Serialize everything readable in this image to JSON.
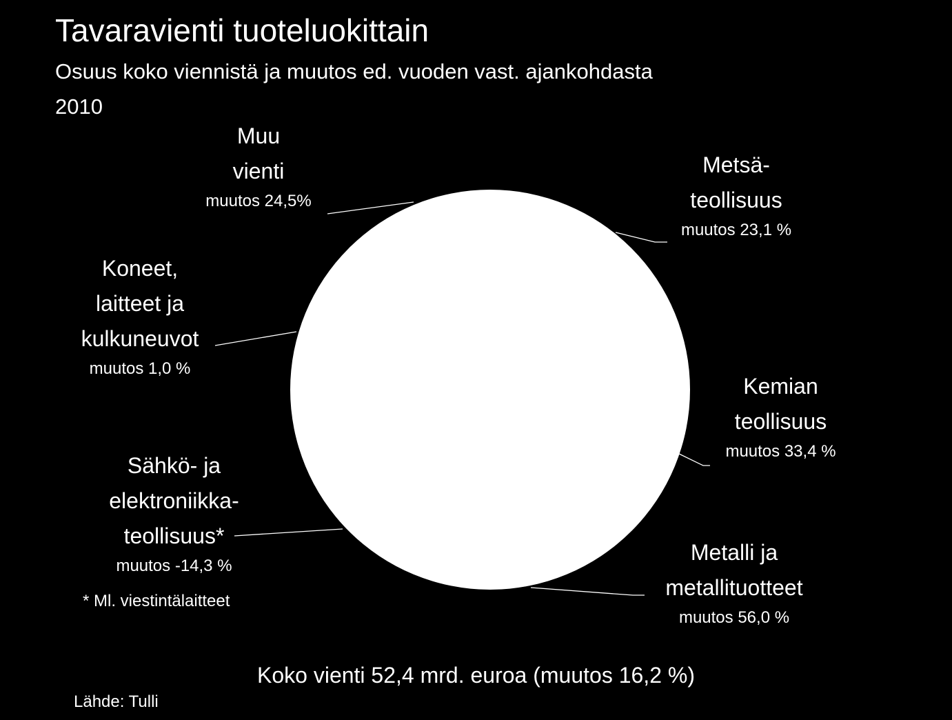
{
  "title": "Tavaravienti tuoteluokittain",
  "subtitle_line1": "Osuus koko viennistä ja muutos ed. vuoden vast. ajankohdasta",
  "subtitle_line2": "2010",
  "colors": {
    "background": "#000000",
    "text": "#ffffff",
    "pie_fill": "#ffffff",
    "leader_line": "#ffffff"
  },
  "chart_data": {
    "type": "pie",
    "title": "Tavaravienti tuoteluokittain",
    "subtitle": "Osuus koko viennistä ja muutos ed. vuoden vast. ajankohdasta 2010",
    "total_label": "Koko vienti 52,4 mrd. euroa (muutos 16,2 %)",
    "segments": [
      {
        "key": "metsa",
        "name_lines": [
          "Metsä-",
          "teollisuus"
        ],
        "change_label": "muutos 23,1 %",
        "change_pct": 23.1
      },
      {
        "key": "kemian",
        "name_lines": [
          "Kemian",
          "teollisuus"
        ],
        "change_label": "muutos 33,4 %",
        "change_pct": 33.4
      },
      {
        "key": "metalli",
        "name_lines": [
          "Metalli ja",
          "metallituotteet"
        ],
        "change_label": "muutos 56,0 %",
        "change_pct": 56.0
      },
      {
        "key": "sahko",
        "name_lines": [
          "Sähkö- ja",
          "elektroniikka-",
          "teollisuus*"
        ],
        "change_label": "muutos -14,3 %",
        "change_pct": -14.3
      },
      {
        "key": "koneet",
        "name_lines": [
          "Koneet,",
          "laitteet ja",
          "kulkuneuvot"
        ],
        "change_label": "muutos 1,0 %",
        "change_pct": 1.0
      },
      {
        "key": "muu",
        "name_lines": [
          "Muu",
          "vienti"
        ],
        "change_label": "muutos 24,5%",
        "change_pct": 24.5
      }
    ]
  },
  "footnote": "* Ml. viestintälaitteet",
  "source": "Lähde: Tulli"
}
